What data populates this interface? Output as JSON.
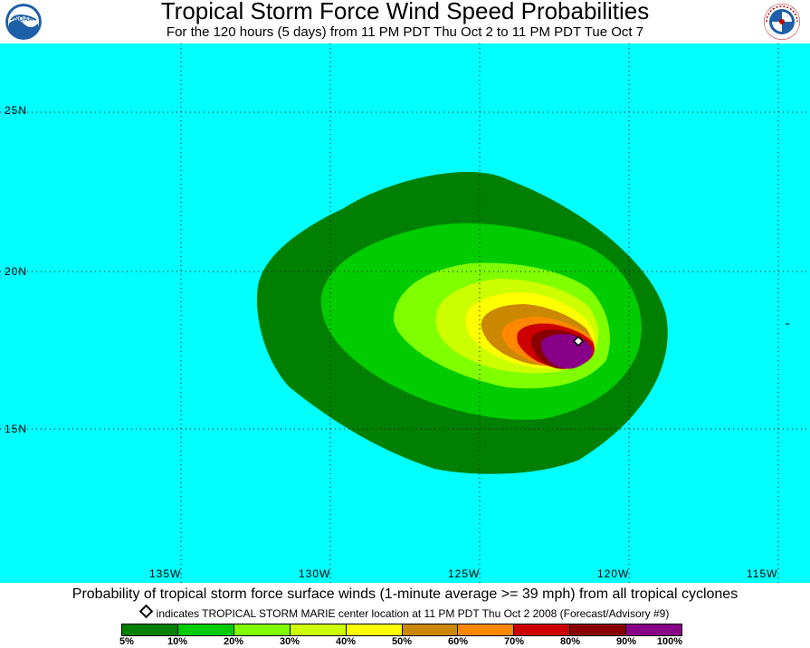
{
  "header": {
    "title": "Tropical Storm Force Wind Speed Probabilities",
    "subtitle": "For the 120 hours (5 days) from 11 PM PDT Thu Oct 2 to 11 PM PDT Tue Oct 7",
    "left_logo": {
      "icon": "noaa-logo",
      "text": "NOAA"
    },
    "right_logo": {
      "icon": "national-weather-service-logo",
      "text": "NATIONAL WEATHER SERVICE"
    }
  },
  "map": {
    "background_color": "#00ffff",
    "lat_labels": [
      "25N",
      "20N",
      "15N"
    ],
    "lon_labels": [
      "135W",
      "130W",
      "125W",
      "120W",
      "115W"
    ],
    "storm_marker": {
      "icon": "diamond-marker",
      "name": "TROPICAL STORM MARIE"
    }
  },
  "footer": {
    "caption": "Probability of tropical storm force surface winds (1-minute average >= 39 mph) from all tropical cyclones",
    "marker_note": "indicates TROPICAL STORM MARIE center location at 11 PM PDT Thu Oct 2 2008 (Forecast/Advisory #9)"
  },
  "legend": {
    "colors": [
      "#008000",
      "#00cc00",
      "#80ff00",
      "#ccff00",
      "#ffff00",
      "#cc8800",
      "#ff8800",
      "#cc0000",
      "#880000",
      "#880088"
    ],
    "labels": [
      "5%",
      "10%",
      "20%",
      "30%",
      "40%",
      "50%",
      "60%",
      "70%",
      "80%",
      "90%",
      "100%"
    ]
  }
}
